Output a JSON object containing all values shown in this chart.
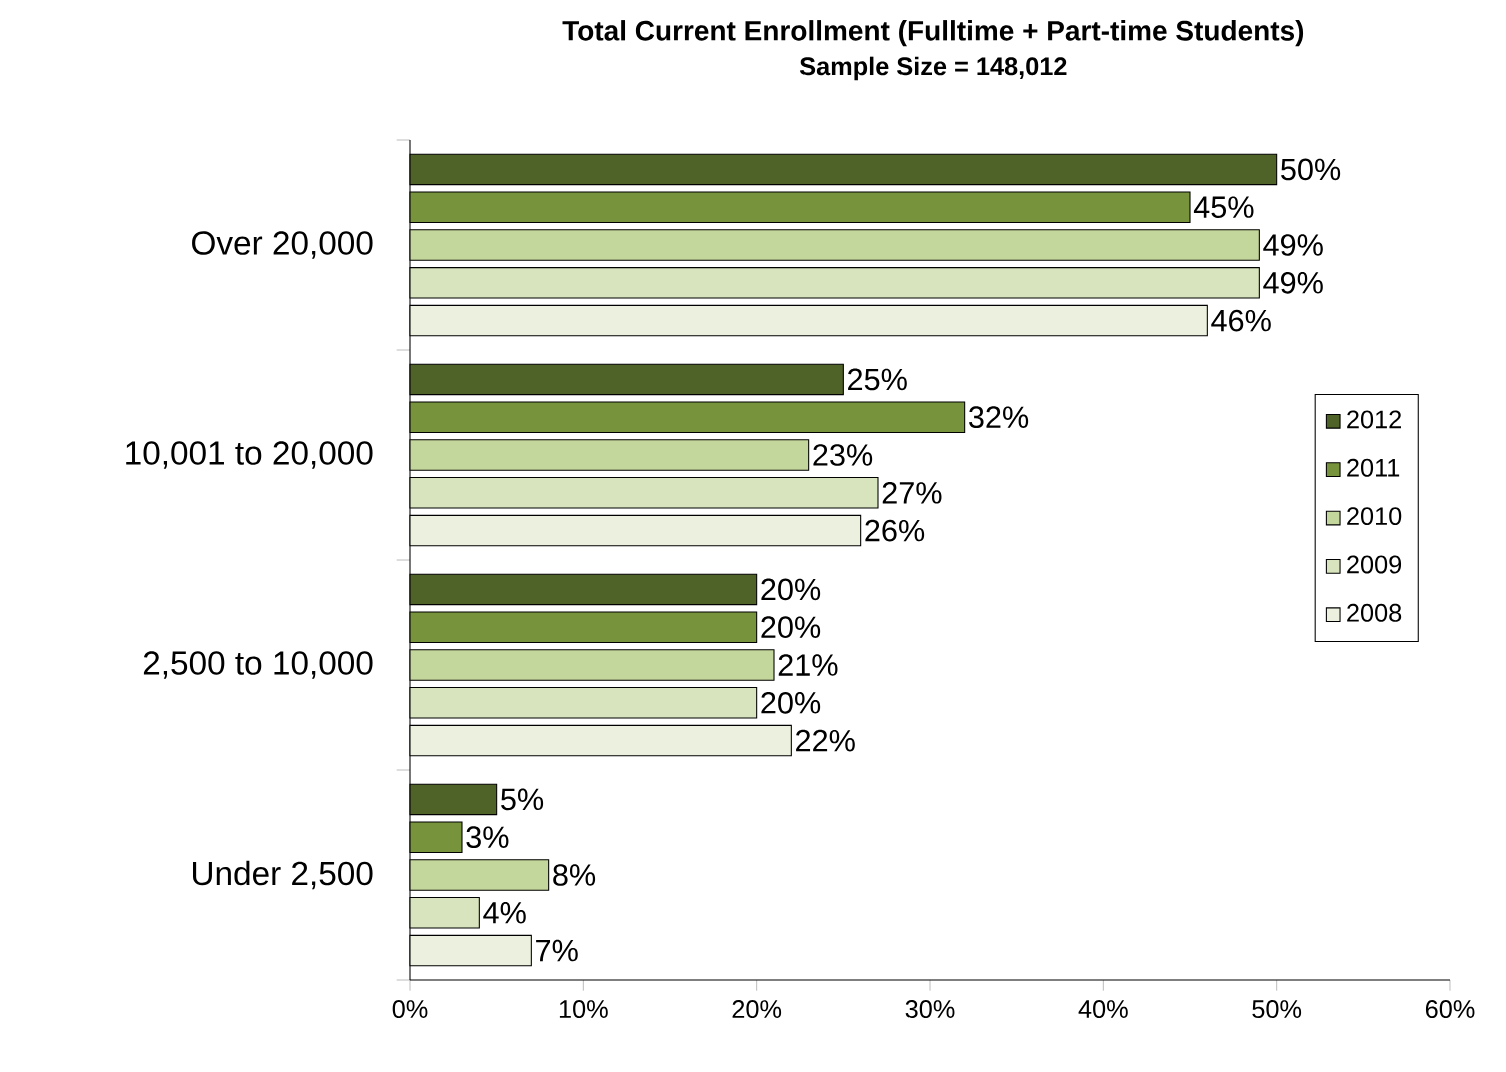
{
  "chart_data": {
    "type": "bar",
    "orientation": "horizontal",
    "title": "Total Current Enrollment (Fulltime + Part-time Students)",
    "subtitle": "Sample Size = 148,012",
    "categories": [
      "Over 20,000",
      "10,001 to 20,000",
      "2,500 to 10,000",
      "Under 2,500"
    ],
    "series": [
      {
        "name": "2012",
        "color": "#4f6228",
        "values": [
          50,
          25,
          20,
          5
        ],
        "value_labels": [
          "50%",
          "25%",
          "20%",
          "5%"
        ]
      },
      {
        "name": "2011",
        "color": "#77933c",
        "values": [
          45,
          32,
          20,
          3
        ],
        "value_labels": [
          "45%",
          "32%",
          "20%",
          "3%"
        ]
      },
      {
        "name": "2010",
        "color": "#c3d69b",
        "values": [
          49,
          23,
          21,
          8
        ],
        "value_labels": [
          "49%",
          "23%",
          "21%",
          "8%"
        ]
      },
      {
        "name": "2009",
        "color": "#d7e4bd",
        "values": [
          49,
          27,
          20,
          4
        ],
        "value_labels": [
          "49%",
          "27%",
          "20%",
          "4%"
        ]
      },
      {
        "name": "2008",
        "color": "#ebf1de",
        "values": [
          46,
          26,
          22,
          7
        ],
        "value_labels": [
          "46%",
          "26%",
          "22%",
          "7%"
        ]
      }
    ],
    "xlim": [
      0,
      60
    ],
    "xticks": [
      {
        "value": 0,
        "label": "0%"
      },
      {
        "value": 10,
        "label": "10%"
      },
      {
        "value": 20,
        "label": "20%"
      },
      {
        "value": 30,
        "label": "30%"
      },
      {
        "value": 40,
        "label": "40%"
      },
      {
        "value": 50,
        "label": "50%"
      },
      {
        "value": 60,
        "label": "60%"
      }
    ],
    "legend": "right"
  }
}
